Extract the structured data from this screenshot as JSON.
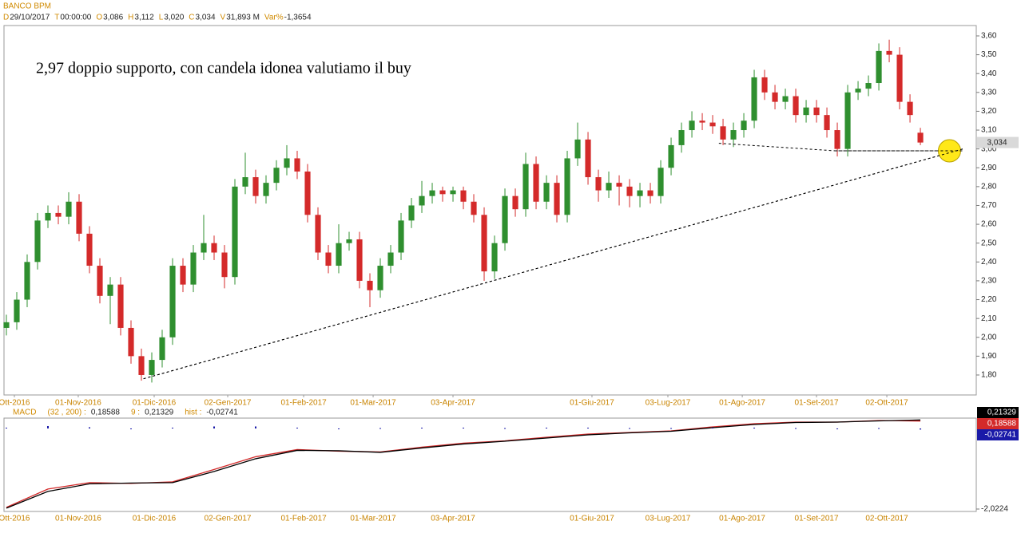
{
  "header": {
    "title": "BANCO BPM",
    "fields": [
      {
        "key": "D",
        "value": "29/10/2017"
      },
      {
        "key": "T",
        "value": "00:00:00"
      },
      {
        "key": "O",
        "value": "3,086"
      },
      {
        "key": "H",
        "value": "3,112"
      },
      {
        "key": "L",
        "value": "3,020"
      },
      {
        "key": "C",
        "value": "3,034"
      },
      {
        "key": "V",
        "value": "31,893 M"
      },
      {
        "key": "Var%",
        "value": "-1,3654"
      }
    ]
  },
  "chart_data": [
    {
      "type": "candlestick",
      "annotation": "2,97 doppio supporto, con candela idonea valutiamo il buy",
      "x": [
        0,
        1,
        2,
        3,
        4,
        5,
        6,
        7,
        8,
        9,
        10,
        11,
        12,
        13,
        14,
        15,
        16,
        17,
        18,
        19,
        20,
        21,
        22,
        23,
        24,
        25,
        26,
        27,
        28,
        29,
        30,
        31,
        32,
        33,
        34,
        35,
        36,
        37,
        38,
        39,
        40,
        41,
        42,
        43,
        44,
        45,
        46,
        47,
        48,
        49,
        50,
        51,
        52,
        53,
        54,
        55,
        56,
        57,
        58,
        59,
        60,
        61,
        62,
        63,
        64,
        65,
        66,
        67,
        68,
        69,
        70,
        71,
        72,
        73,
        74,
        75,
        76,
        77,
        78,
        79,
        80,
        81,
        82,
        83,
        84,
        85,
        86,
        87,
        88
      ],
      "open": [
        2.05,
        2.08,
        2.2,
        2.4,
        2.62,
        2.66,
        2.64,
        2.72,
        2.55,
        2.38,
        2.22,
        2.28,
        2.05,
        1.9,
        1.8,
        1.88,
        2.0,
        2.38,
        2.28,
        2.45,
        2.5,
        2.45,
        2.32,
        2.8,
        2.85,
        2.75,
        2.82,
        2.9,
        2.95,
        2.88,
        2.65,
        2.45,
        2.38,
        2.5,
        2.52,
        2.3,
        2.25,
        2.38,
        2.45,
        2.62,
        2.7,
        2.75,
        2.78,
        2.76,
        2.78,
        2.72,
        2.65,
        2.35,
        2.5,
        2.75,
        2.68,
        2.92,
        2.72,
        2.82,
        2.65,
        2.95,
        3.05,
        2.85,
        2.78,
        2.82,
        2.8,
        2.75,
        2.78,
        2.75,
        2.9,
        3.02,
        3.1,
        3.15,
        3.14,
        3.12,
        3.05,
        3.1,
        3.15,
        3.38,
        3.3,
        3.25,
        3.28,
        3.18,
        3.22,
        3.18,
        3.1,
        3.0,
        3.3,
        3.32,
        3.35,
        3.52,
        3.5,
        3.25,
        3.086
      ],
      "high": [
        2.12,
        2.24,
        2.44,
        2.66,
        2.7,
        2.7,
        2.77,
        2.76,
        2.59,
        2.42,
        2.32,
        2.32,
        2.09,
        1.94,
        1.92,
        2.04,
        2.42,
        2.42,
        2.49,
        2.65,
        2.54,
        2.49,
        2.84,
        2.98,
        2.89,
        2.86,
        2.94,
        3.02,
        2.99,
        2.92,
        2.69,
        2.49,
        2.6,
        2.56,
        2.56,
        2.34,
        2.42,
        2.49,
        2.66,
        2.74,
        2.83,
        2.82,
        2.8,
        2.8,
        2.8,
        2.76,
        2.69,
        2.54,
        2.79,
        2.79,
        2.98,
        2.96,
        2.86,
        2.86,
        2.99,
        3.14,
        3.09,
        2.89,
        2.88,
        2.86,
        2.84,
        2.82,
        2.82,
        2.94,
        3.06,
        3.14,
        3.2,
        3.19,
        3.18,
        3.16,
        3.14,
        3.19,
        3.42,
        3.42,
        3.34,
        3.32,
        3.32,
        3.26,
        3.26,
        3.22,
        3.14,
        3.34,
        3.36,
        3.39,
        3.56,
        3.58,
        3.54,
        3.29,
        3.112
      ],
      "low": [
        2.01,
        2.04,
        2.16,
        2.36,
        2.58,
        2.6,
        2.6,
        2.51,
        2.34,
        2.18,
        2.07,
        2.01,
        1.86,
        1.77,
        1.76,
        1.84,
        1.96,
        2.24,
        2.24,
        2.41,
        2.41,
        2.26,
        2.28,
        2.76,
        2.71,
        2.71,
        2.78,
        2.86,
        2.84,
        2.61,
        2.41,
        2.34,
        2.34,
        2.46,
        2.26,
        2.16,
        2.21,
        2.34,
        2.41,
        2.58,
        2.66,
        2.71,
        2.72,
        2.72,
        2.68,
        2.61,
        2.3,
        2.31,
        2.46,
        2.64,
        2.64,
        2.68,
        2.68,
        2.61,
        2.61,
        2.91,
        2.81,
        2.72,
        2.74,
        2.7,
        2.69,
        2.69,
        2.71,
        2.71,
        2.86,
        2.98,
        3.06,
        3.1,
        3.08,
        3.02,
        3.01,
        3.06,
        3.11,
        3.26,
        3.21,
        3.21,
        3.14,
        3.14,
        3.14,
        3.06,
        2.96,
        2.96,
        3.26,
        3.28,
        3.31,
        3.46,
        3.21,
        3.14,
        3.02
      ],
      "close": [
        2.08,
        2.2,
        2.4,
        2.62,
        2.66,
        2.64,
        2.72,
        2.55,
        2.38,
        2.22,
        2.28,
        2.05,
        1.9,
        1.8,
        1.88,
        2.0,
        2.38,
        2.28,
        2.45,
        2.5,
        2.45,
        2.32,
        2.8,
        2.85,
        2.75,
        2.82,
        2.9,
        2.95,
        2.88,
        2.65,
        2.45,
        2.38,
        2.5,
        2.52,
        2.3,
        2.25,
        2.38,
        2.45,
        2.62,
        2.7,
        2.75,
        2.78,
        2.76,
        2.78,
        2.72,
        2.65,
        2.35,
        2.5,
        2.75,
        2.68,
        2.92,
        2.72,
        2.82,
        2.65,
        2.95,
        3.05,
        2.85,
        2.78,
        2.82,
        2.8,
        2.75,
        2.78,
        2.75,
        2.9,
        3.02,
        3.1,
        3.15,
        3.14,
        3.12,
        3.05,
        3.1,
        3.15,
        3.38,
        3.3,
        3.25,
        3.28,
        3.18,
        3.22,
        3.18,
        3.1,
        3.0,
        3.3,
        3.32,
        3.35,
        3.52,
        3.5,
        3.25,
        3.18,
        3.034
      ],
      "up_color": "#2f8f2f",
      "down_color": "#d42a2a",
      "xlim": [
        -0.23,
        93.38
      ],
      "ylim": [
        1.694,
        3.655
      ],
      "yticks": [
        {
          "value": 1.8,
          "label": "1,80"
        },
        {
          "value": 1.9,
          "label": "1,90"
        },
        {
          "value": 2.0,
          "label": "2,00"
        },
        {
          "value": 2.1,
          "label": "2,10"
        },
        {
          "value": 2.2,
          "label": "2,20"
        },
        {
          "value": 2.3,
          "label": "2,30"
        },
        {
          "value": 2.4,
          "label": "2,40"
        },
        {
          "value": 2.5,
          "label": "2,50"
        },
        {
          "value": 2.6,
          "label": "2,60"
        },
        {
          "value": 2.7,
          "label": "2,70"
        },
        {
          "value": 2.8,
          "label": "2,80"
        },
        {
          "value": 2.9,
          "label": "2,90"
        },
        {
          "value": 3.0,
          "label": "3,00"
        },
        {
          "value": 3.1,
          "label": "3,10"
        },
        {
          "value": 3.2,
          "label": "3,20"
        },
        {
          "value": 3.3,
          "label": "3,30"
        },
        {
          "value": 3.4,
          "label": "3,40"
        },
        {
          "value": 3.5,
          "label": "3,50"
        },
        {
          "value": 3.6,
          "label": "3,60"
        }
      ],
      "xticks": [
        {
          "value": 0.77,
          "label": "Ott-2016"
        },
        {
          "value": 6.92,
          "label": "01-Nov-2016"
        },
        {
          "value": 14.23,
          "label": "01-Dic-2016"
        },
        {
          "value": 21.31,
          "label": "02-Gen-2017"
        },
        {
          "value": 28.62,
          "label": "01-Feb-2017"
        },
        {
          "value": 35.31,
          "label": "01-Mar-2017"
        },
        {
          "value": 43.0,
          "label": "03-Apr-2017"
        },
        {
          "value": 56.38,
          "label": "01-Giu-2017"
        },
        {
          "value": 63.69,
          "label": "03-Lug-2017"
        },
        {
          "value": 70.85,
          "label": "01-Ago-2017"
        },
        {
          "value": 78.0,
          "label": "01-Set-2017"
        },
        {
          "value": 84.77,
          "label": "02-Ott-2017"
        }
      ],
      "last_label": {
        "value": 3.034,
        "label": "3,034"
      },
      "trendlines": [
        {
          "x": [
            13.2,
            92.1
          ],
          "y": [
            1.78,
            3.0
          ]
        },
        {
          "x": [
            68.6,
            79.8,
            92.1
          ],
          "y": [
            3.03,
            2.99,
            2.99
          ]
        }
      ],
      "marker": {
        "x": 90.8,
        "y": 2.99,
        "color": "#ffe600"
      }
    },
    {
      "type": "line",
      "title": "MACD",
      "x": [
        0,
        4,
        8,
        12,
        16,
        20,
        24,
        28,
        32,
        36,
        40,
        44,
        48,
        52,
        56,
        60,
        64,
        68,
        72,
        76,
        80,
        84,
        88
      ],
      "series": [
        {
          "name": "(32 , 200) :",
          "color": "#d42a2a",
          "last_label": "0,18588",
          "values": [
            -1.98,
            -1.52,
            -1.36,
            -1.38,
            -1.34,
            -1.03,
            -0.71,
            -0.53,
            -0.57,
            -0.59,
            -0.47,
            -0.37,
            -0.31,
            -0.22,
            -0.14,
            -0.1,
            -0.06,
            0.04,
            0.12,
            0.16,
            0.16,
            0.2,
            0.18588
          ]
        },
        {
          "name": "9 :",
          "color": "#000000",
          "last_label": "0,21329",
          "values": [
            -2.0,
            -1.58,
            -1.39,
            -1.37,
            -1.36,
            -1.08,
            -0.76,
            -0.55,
            -0.56,
            -0.6,
            -0.49,
            -0.39,
            -0.32,
            -0.24,
            -0.16,
            -0.11,
            -0.07,
            0.02,
            0.1,
            0.15,
            0.16,
            0.19,
            0.21329
          ]
        },
        {
          "name": "hist :",
          "color": "#1a1aa8",
          "last_label": "-0,02741",
          "kind": "hist",
          "values": [
            0.02,
            0.06,
            0.03,
            -0.01,
            0.02,
            0.05,
            0.05,
            0.02,
            -0.01,
            0.01,
            0.02,
            0.02,
            0.01,
            0.02,
            0.02,
            0.01,
            0.01,
            0.02,
            0.02,
            0.01,
            0.0,
            0.01,
            -0.02741
          ]
        }
      ],
      "xlim": [
        -0.23,
        93.38
      ],
      "ylim": [
        -2.083,
        0.26
      ],
      "yticks": [
        {
          "value": -2.0224,
          "label": "-2,0224"
        }
      ]
    }
  ]
}
